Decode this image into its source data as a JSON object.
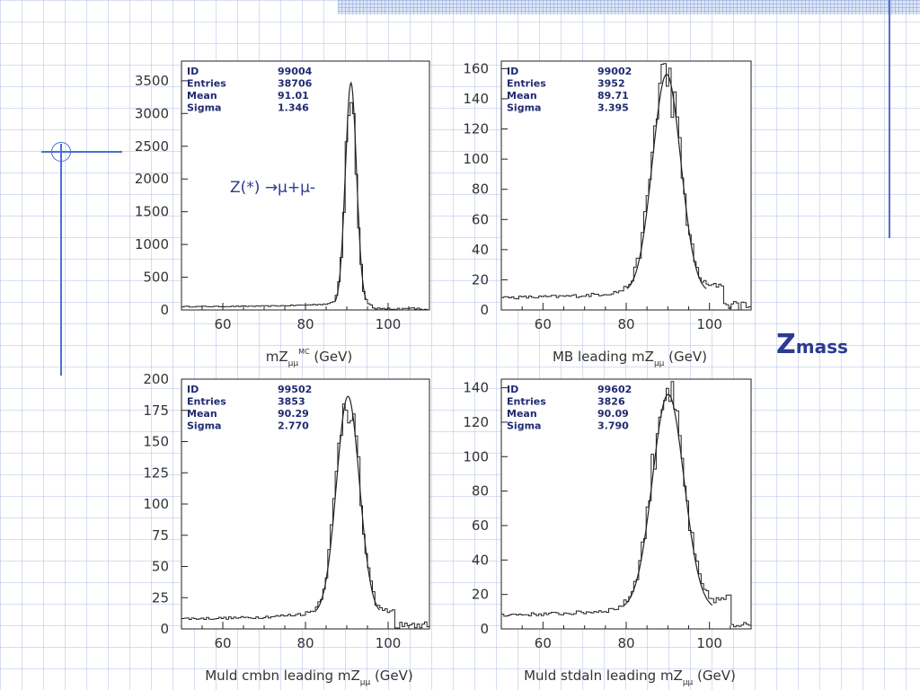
{
  "slide": {
    "side_label": {
      "main": "Z",
      "sub": "mass"
    },
    "colors": {
      "accent": "#4a6fd6",
      "title": "#2b3a93",
      "stats": "#1f2a70"
    }
  },
  "chart_data": [
    {
      "type": "histogram",
      "xlabel": "mZμμ^MC (GeV)",
      "xlabel_parts": {
        "base": "mZ",
        "sub": "μμ",
        "sup": "MC",
        "unit": " (GeV)"
      },
      "xlim": [
        50,
        110
      ],
      "ylim": [
        0,
        3800
      ],
      "xticks": [
        60,
        80,
        100
      ],
      "yticks": [
        0,
        500,
        1000,
        1500,
        2000,
        2500,
        3000,
        3500
      ],
      "stats": [
        [
          "ID",
          "99004"
        ],
        [
          "Entries",
          "38706"
        ],
        [
          "Mean",
          "91.01"
        ],
        [
          "Sigma",
          "1.346"
        ]
      ],
      "annotation": "Z(*) →μ+μ-",
      "peak": {
        "mean": 91.01,
        "sigma": 1.346,
        "height": 3400,
        "bg": 50
      },
      "fit": true
    },
    {
      "type": "histogram",
      "xlabel": "MB leading mZμμ (GeV)",
      "xlabel_parts": {
        "base": "MB leading mZ",
        "sub": "μμ",
        "sup": "",
        "unit": " (GeV)"
      },
      "xlim": [
        50,
        110
      ],
      "ylim": [
        0,
        165
      ],
      "xticks": [
        60,
        80,
        100
      ],
      "yticks": [
        0,
        20,
        40,
        60,
        80,
        100,
        120,
        140,
        160
      ],
      "stats": [
        [
          "ID",
          "99002"
        ],
        [
          "Entries",
          "3952"
        ],
        [
          "Mean",
          "89.71"
        ],
        [
          "Sigma",
          "3.395"
        ]
      ],
      "peak": {
        "mean": 89.71,
        "sigma": 3.395,
        "height": 145,
        "bg": 8
      },
      "fit": true
    },
    {
      "type": "histogram",
      "xlabel": "Muld cmbn leading mZμμ (GeV)",
      "xlabel_parts": {
        "base": "Muld cmbn leading mZ",
        "sub": "μμ",
        "sup": "",
        "unit": " (GeV)"
      },
      "xlim": [
        50,
        110
      ],
      "ylim": [
        0,
        200
      ],
      "xticks": [
        60,
        80,
        100
      ],
      "yticks": [
        0,
        25,
        50,
        75,
        100,
        125,
        150,
        175,
        200
      ],
      "stats": [
        [
          "ID",
          "99502"
        ],
        [
          "Entries",
          "3853"
        ],
        [
          "Mean",
          "90.29"
        ],
        [
          "Sigma",
          "2.770"
        ]
      ],
      "peak": {
        "mean": 90.29,
        "sigma": 2.77,
        "height": 175,
        "bg": 8
      },
      "fit": true
    },
    {
      "type": "histogram",
      "xlabel": "Muld stdaln leading mZμμ (GeV)",
      "xlabel_parts": {
        "base": "Muld stdaln leading mZ",
        "sub": "μμ",
        "sup": "",
        "unit": " (GeV)"
      },
      "xlim": [
        50,
        110
      ],
      "ylim": [
        0,
        145
      ],
      "xticks": [
        60,
        80,
        100
      ],
      "yticks": [
        0,
        20,
        40,
        60,
        80,
        100,
        120,
        140
      ],
      "stats": [
        [
          "ID",
          "99602"
        ],
        [
          "Entries",
          "3826"
        ],
        [
          "Mean",
          "90.09"
        ],
        [
          "Sigma",
          "3.790"
        ]
      ],
      "peak": {
        "mean": 90.09,
        "sigma": 3.79,
        "height": 125,
        "bg": 8
      },
      "fit": true
    }
  ]
}
